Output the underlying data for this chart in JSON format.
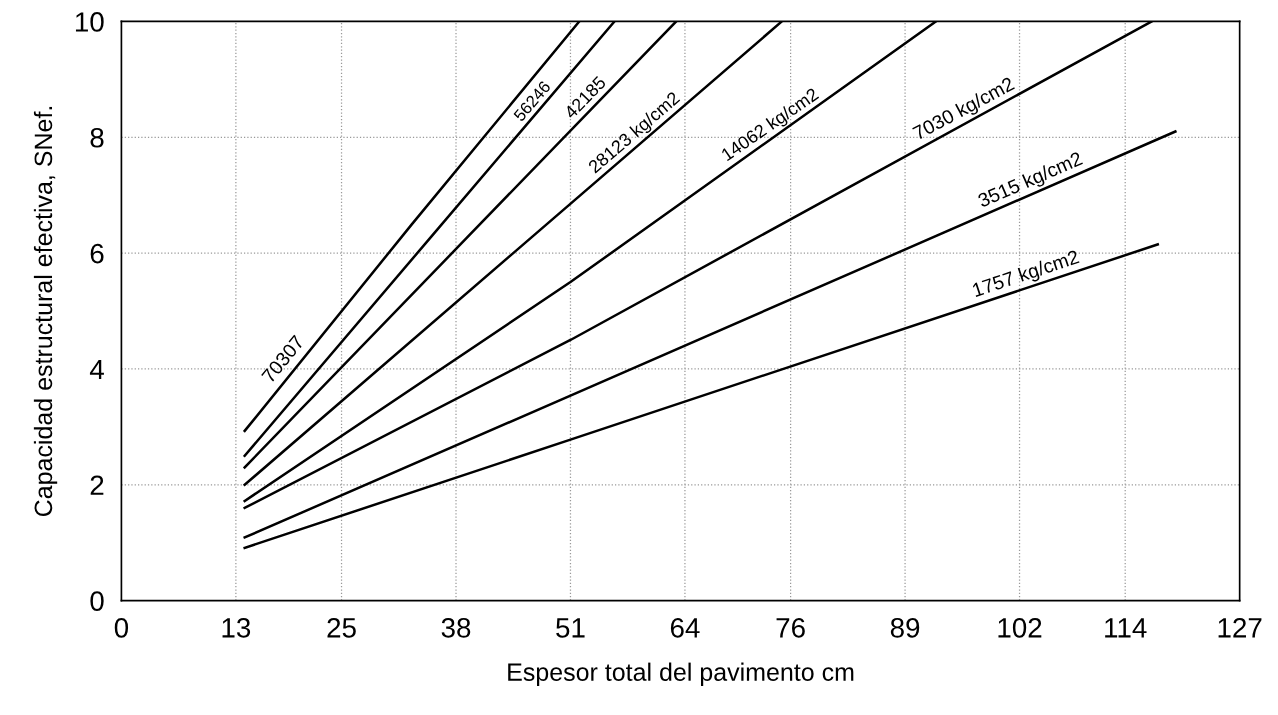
{
  "chart_data": {
    "type": "line",
    "xlabel": "Espesor total del pavimento cm",
    "ylabel": "Capacidad estructural efectiva, SNef.",
    "xlim": [
      0,
      127
    ],
    "ylim": [
      0,
      10
    ],
    "xticks": [
      0,
      13,
      25,
      38,
      51,
      64,
      76,
      89,
      102,
      114,
      127
    ],
    "yticks": [
      0,
      2,
      4,
      6,
      8,
      10
    ],
    "grid": true,
    "line_style": "solid",
    "marker": "none",
    "series": [
      {
        "name": "70307",
        "color": "#000000",
        "x": [
          14,
          33,
          52
        ],
        "values": [
          2.93,
          6.5,
          10
        ]
      },
      {
        "name": "56246",
        "color": "#000000",
        "x": [
          14,
          35,
          56
        ],
        "values": [
          2.5,
          6.25,
          10
        ]
      },
      {
        "name": "42185",
        "color": "#000000",
        "x": [
          14,
          38.5,
          63
        ],
        "values": [
          2.3,
          6.15,
          10
        ]
      },
      {
        "name": "28123 kg/cm2",
        "color": "#000000",
        "x": [
          14,
          44.5,
          75
        ],
        "values": [
          2.0,
          6.0,
          10
        ]
      },
      {
        "name": "14062 kg/cm2",
        "color": "#000000",
        "x": [
          14,
          51,
          92.5
        ],
        "values": [
          1.72,
          5.5,
          10
        ]
      },
      {
        "name": "7030 kg/cm2",
        "color": "#000000",
        "x": [
          14,
          51,
          117
        ],
        "values": [
          1.6,
          4.5,
          10
        ]
      },
      {
        "name": "3515 kg/cm2",
        "color": "#000000",
        "x": [
          14,
          51,
          119.7
        ],
        "values": [
          1.09,
          3.54,
          8.1
        ]
      },
      {
        "name": "1757 kg/cm2",
        "color": "#000000",
        "x": [
          14,
          51,
          117.7
        ],
        "values": [
          0.91,
          2.78,
          6.15
        ]
      }
    ]
  }
}
